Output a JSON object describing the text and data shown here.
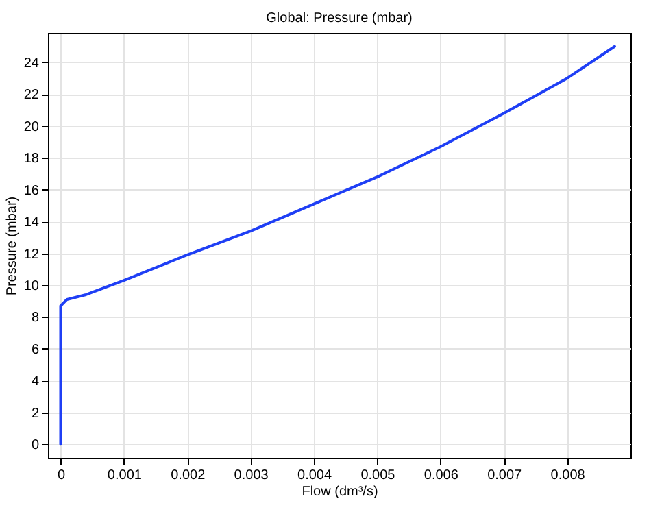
{
  "chart_data": {
    "type": "line",
    "title": "Global: Pressure (mbar)",
    "xlabel": "Flow (dm³/s)",
    "ylabel": "Pressure (mbar)",
    "x": [
      0,
      0,
      0.0001,
      0.0004,
      0.001,
      0.002,
      0.003,
      0.004,
      0.005,
      0.006,
      0.007,
      0.008,
      0.00875
    ],
    "series": [
      {
        "color": "#1f3ff5",
        "values": [
          0,
          8.7,
          9.1,
          9.4,
          10.3,
          11.9,
          13.4,
          15.1,
          16.8,
          18.7,
          20.8,
          23.0,
          25.0
        ]
      }
    ],
    "xlim": [
      -0.0002,
      0.009
    ],
    "ylim": [
      -0.85,
      25.85
    ],
    "xticks": [
      0,
      0.001,
      0.002,
      0.003,
      0.004,
      0.005,
      0.006,
      0.007,
      0.008
    ],
    "yticks": [
      0,
      2,
      4,
      6,
      8,
      10,
      12,
      14,
      16,
      18,
      20,
      22,
      24
    ],
    "grid": true,
    "marker": "none",
    "line_style": "solid"
  }
}
